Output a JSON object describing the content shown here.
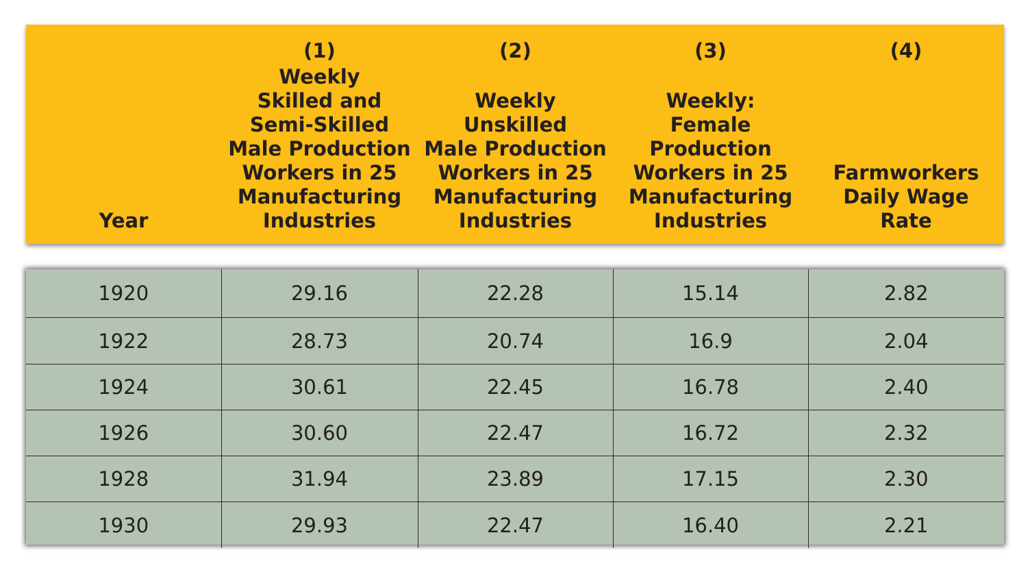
{
  "header": {
    "columns": [
      {
        "number": "",
        "label": "Year"
      },
      {
        "number": "(1)",
        "label": "Weekly\nSkilled and\nSemi-Skilled\nMale Production\nWorkers in 25\nManufacturing\nIndustries"
      },
      {
        "number": "(2)",
        "label": "Weekly\nUnskilled\nMale Production\nWorkers in 25\nManufacturing\nIndustries"
      },
      {
        "number": "(3)",
        "label": "Weekly:\nFemale\nProduction\nWorkers in 25\nManufacturing\nIndustries"
      },
      {
        "number": "(4)",
        "label": "Farmworkers\nDaily Wage\nRate"
      }
    ]
  },
  "rows": [
    [
      "1920",
      "29.16",
      "22.28",
      "15.14",
      "2.82"
    ],
    [
      "1922",
      "28.73",
      "20.74",
      "16.9",
      "2.04"
    ],
    [
      "1924",
      "30.61",
      "22.45",
      "16.78",
      "2.40"
    ],
    [
      "1926",
      "30.60",
      "22.47",
      "16.72",
      "2.32"
    ],
    [
      "1928",
      "31.94",
      "23.89",
      "17.15",
      "2.30"
    ],
    [
      "1930",
      "29.93",
      "22.47",
      "16.40",
      "2.21"
    ]
  ],
  "colors": {
    "header_background": "#fbbd16",
    "body_background": "#b5c3b4",
    "text": "#231f20",
    "grid_lines": "#2a2a2a"
  }
}
